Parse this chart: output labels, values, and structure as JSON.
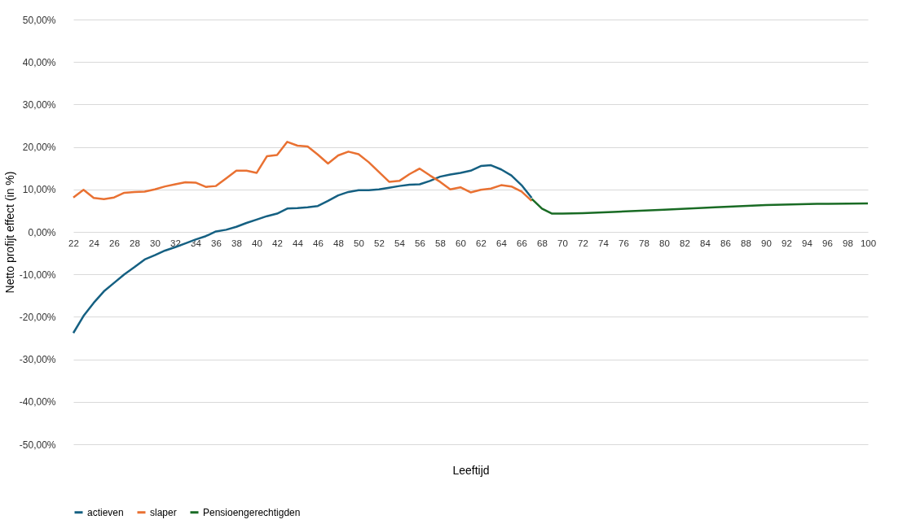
{
  "chart_data": {
    "type": "line",
    "xlabel": "Leeftijd",
    "ylabel": "Netto profijt effect (in %)",
    "legend": "bottom",
    "grid": "y",
    "line_style": "solid",
    "marker": "none",
    "xlim": [
      22,
      100
    ],
    "xticks": [
      22,
      24,
      26,
      28,
      30,
      32,
      34,
      36,
      38,
      40,
      42,
      44,
      46,
      48,
      50,
      52,
      54,
      56,
      58,
      60,
      62,
      64,
      66,
      68,
      70,
      72,
      74,
      76,
      78,
      80,
      82,
      84,
      86,
      88,
      90,
      92,
      94,
      96,
      98,
      100
    ],
    "ylim": [
      -50,
      50
    ],
    "yticks": [
      {
        "value": -50,
        "label": "-50,00%"
      },
      {
        "value": -40,
        "label": "-40,00%"
      },
      {
        "value": -30,
        "label": "-30,00%"
      },
      {
        "value": -20,
        "label": "-20,00%"
      },
      {
        "value": -10,
        "label": "-10,00%"
      },
      {
        "value": 0,
        "label": "0,00%"
      },
      {
        "value": 10,
        "label": "10,00%"
      },
      {
        "value": 20,
        "label": "20,00%"
      },
      {
        "value": 30,
        "label": "30,00%"
      },
      {
        "value": 40,
        "label": "40,00%"
      },
      {
        "value": 50,
        "label": "50,00%"
      }
    ],
    "series": [
      {
        "name": "actieven",
        "color": "#156082",
        "x": [
          22,
          23,
          24,
          25,
          26,
          27,
          28,
          29,
          30,
          31,
          32,
          33,
          34,
          35,
          36,
          37,
          38,
          39,
          40,
          41,
          42,
          43,
          44,
          45,
          46,
          47,
          48,
          49,
          50,
          51,
          52,
          53,
          54,
          55,
          56,
          57,
          58,
          59,
          60,
          61,
          62,
          63,
          64,
          65,
          66,
          67
        ],
        "values": [
          -23.8,
          -19.8,
          -16.7,
          -14,
          -12,
          -10,
          -8.3,
          -6.5,
          -5.5,
          -4.4,
          -3.6,
          -2.7,
          -1.8,
          -1,
          0.1,
          0.5,
          1.2,
          2.1,
          2.9,
          3.7,
          4.3,
          5.5,
          5.6,
          5.8,
          6.1,
          7.3,
          8.6,
          9.4,
          9.8,
          9.8,
          10,
          10.4,
          10.8,
          11.1,
          11.2,
          12,
          13,
          13.5,
          13.9,
          14.4,
          15.5,
          15.7,
          14.7,
          13.3,
          11,
          8
        ]
      },
      {
        "name": "slaper",
        "color": "#e97132",
        "x": [
          22,
          23,
          24,
          25,
          26,
          27,
          28,
          29,
          30,
          31,
          32,
          33,
          34,
          35,
          36,
          37,
          38,
          39,
          40,
          41,
          42,
          43,
          44,
          45,
          46,
          47,
          48,
          49,
          50,
          51,
          52,
          53,
          54,
          55,
          56,
          57,
          58,
          59,
          60,
          61,
          62,
          63,
          64,
          65,
          66,
          67
        ],
        "values": [
          8.1,
          9.9,
          8,
          7.7,
          8.1,
          9.2,
          9.4,
          9.5,
          10,
          10.7,
          11.2,
          11.7,
          11.6,
          10.6,
          10.8,
          12.6,
          14.4,
          14.4,
          13.9,
          17.8,
          18.1,
          21.2,
          20.3,
          20.1,
          18.2,
          16.1,
          18,
          18.9,
          18.3,
          16.4,
          14.1,
          11.8,
          12,
          13.6,
          14.9,
          13.3,
          11.8,
          10,
          10.5,
          9.3,
          9.9,
          10.2,
          11,
          10.7,
          9.5,
          7.3
        ]
      },
      {
        "name": "Pensioengerechtigden",
        "color": "#196b24",
        "x": [
          67,
          68,
          69,
          70,
          72,
          75,
          80,
          85,
          90,
          95,
          100
        ],
        "values": [
          7.8,
          5.5,
          4.3,
          4.3,
          4.4,
          4.7,
          5.2,
          5.8,
          6.3,
          6.6,
          6.7
        ]
      }
    ]
  }
}
